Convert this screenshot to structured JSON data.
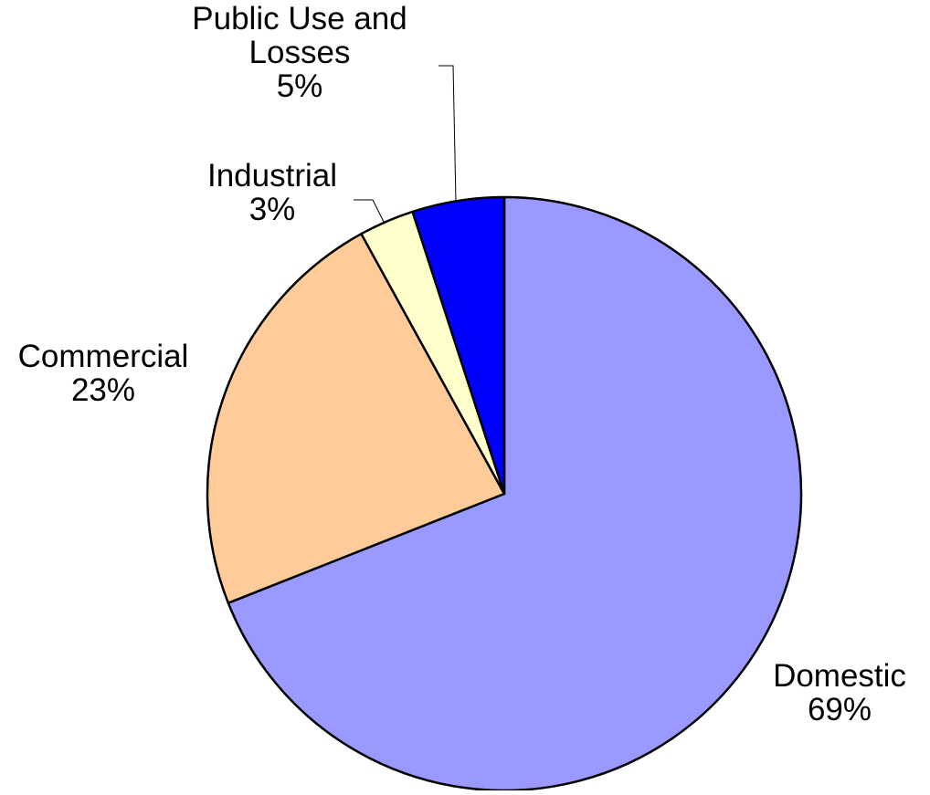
{
  "chart_data": {
    "type": "pie",
    "title": "",
    "slices": [
      {
        "label": "Domestic",
        "value": 69,
        "value_label": "69%",
        "color": "#9999FF"
      },
      {
        "label": "Commercial",
        "value": 23,
        "value_label": "23%",
        "color": "#FFCC99"
      },
      {
        "label": "Industrial",
        "value": 3,
        "value_label": "3%",
        "color": "#FFFFCC"
      },
      {
        "label": "Public Use and Losses",
        "value": 5,
        "value_label": "5%",
        "color": "#0000FF"
      }
    ],
    "start_angle": "12 o'clock",
    "direction": "clockwise",
    "legend": "none",
    "data_labels": "category and percentage, outside the pie"
  }
}
